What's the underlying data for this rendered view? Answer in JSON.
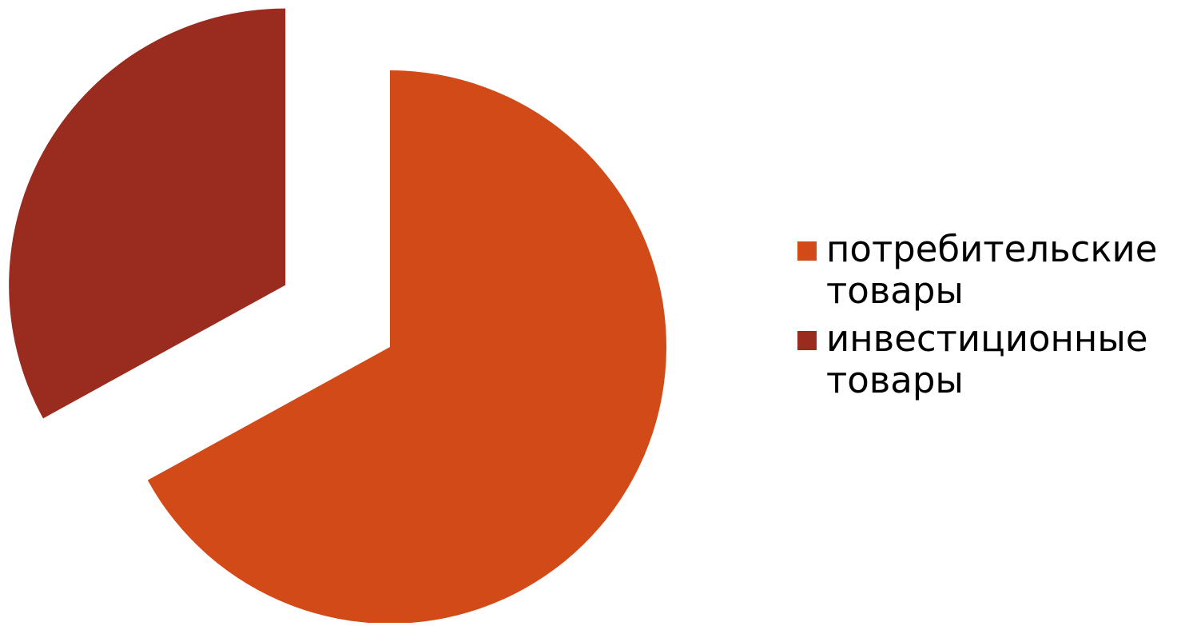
{
  "chart_data": {
    "type": "pie",
    "categories": [
      "потребительские товары",
      "инвестиционные товары"
    ],
    "values": [
      67,
      33
    ],
    "colors": [
      "#d14a18",
      "#992c1f"
    ],
    "exploded": true,
    "legend_position": "right"
  }
}
